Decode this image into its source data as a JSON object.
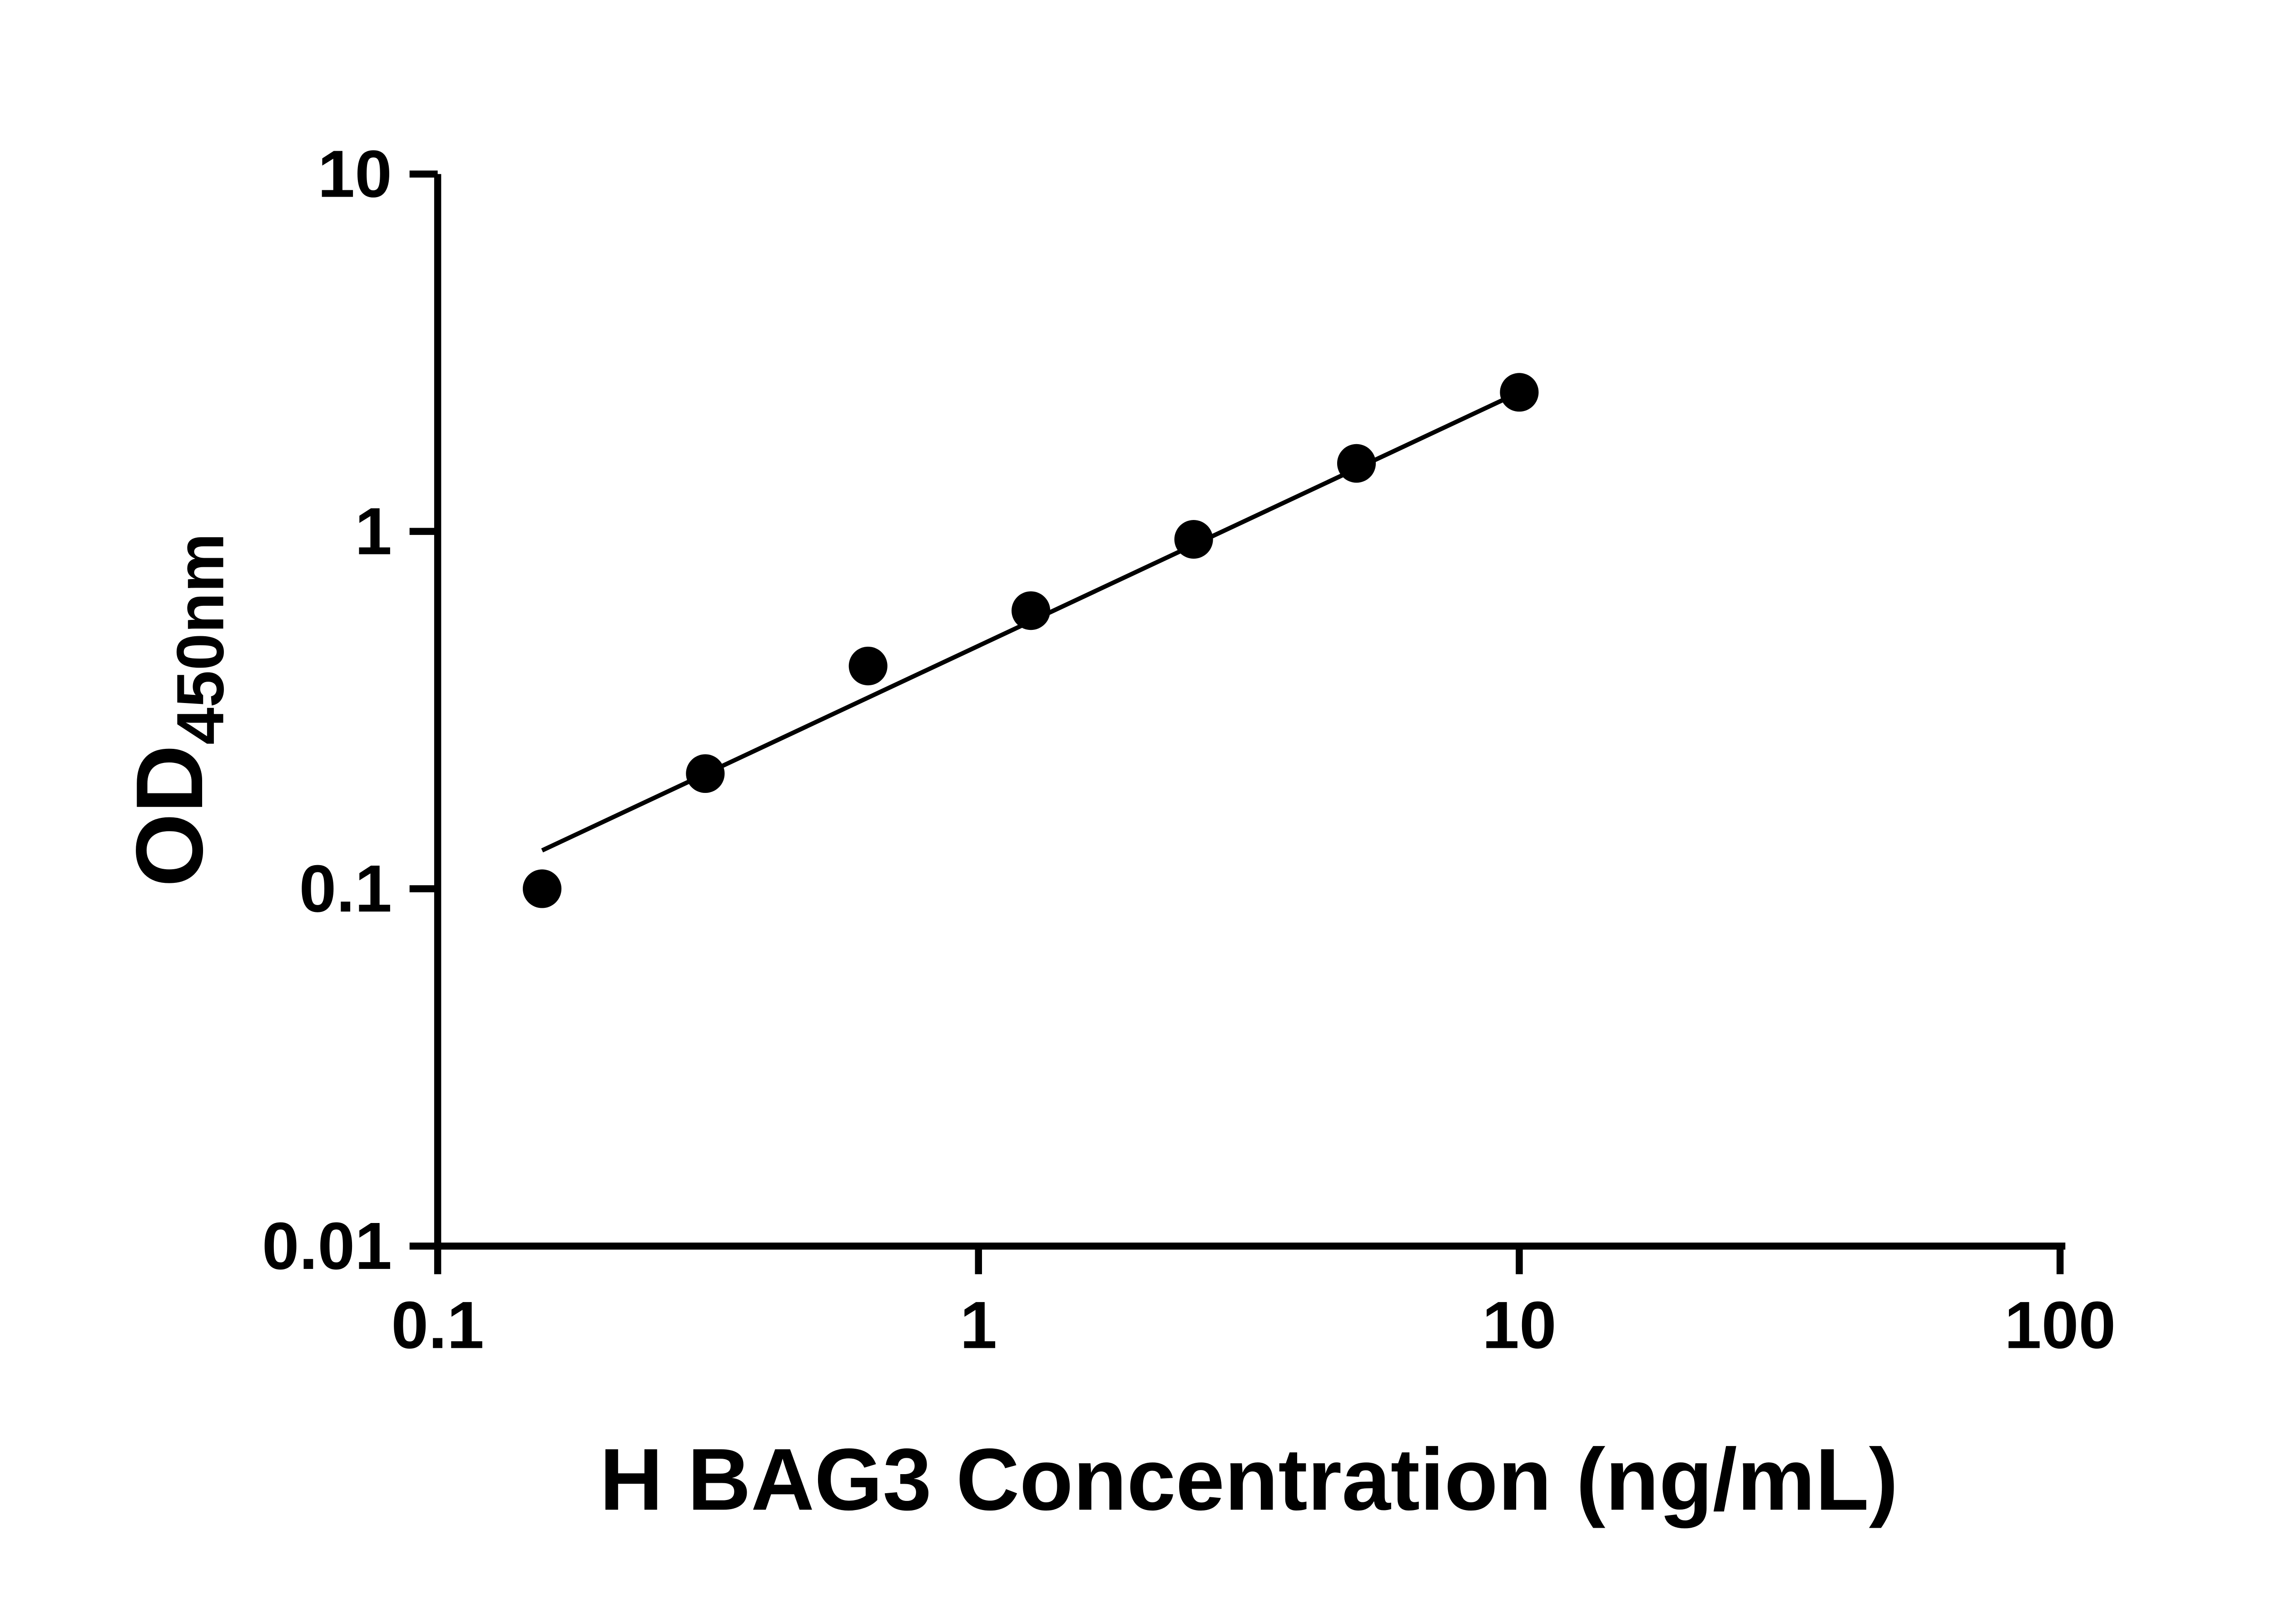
{
  "page": {
    "background": "#ffffff"
  },
  "chart_data": {
    "type": "scatter",
    "title": "",
    "xlabel": "H BAG3 Concentration (ng/mL)",
    "ylabel": "OD450nm",
    "ylabel_main": "OD",
    "ylabel_sub": "450nm",
    "x_scale": "log",
    "y_scale": "log",
    "xlim": [
      0.1,
      100
    ],
    "ylim": [
      0.01,
      10
    ],
    "x_ticks": [
      0.1,
      1,
      10,
      100
    ],
    "x_tick_labels": [
      "0.1",
      "1",
      "10",
      "100"
    ],
    "y_ticks": [
      0.01,
      0.1,
      1,
      10
    ],
    "y_tick_labels": [
      "0.01",
      "0.1",
      "1",
      "10"
    ],
    "grid": false,
    "legend": "none",
    "points": [
      {
        "x": 0.156,
        "y": 0.1
      },
      {
        "x": 0.3125,
        "y": 0.21
      },
      {
        "x": 0.625,
        "y": 0.42
      },
      {
        "x": 1.25,
        "y": 0.6
      },
      {
        "x": 2.5,
        "y": 0.95
      },
      {
        "x": 5,
        "y": 1.55
      },
      {
        "x": 10,
        "y": 2.45
      }
    ],
    "trendline": {
      "x1": 0.156,
      "y1": 0.128,
      "x2": 10,
      "y2": 2.45
    },
    "marker": {
      "shape": "circle",
      "color": "#000000",
      "radius_px": 11
    },
    "colors": {
      "axis": "#000000",
      "line": "#000000",
      "point": "#000000",
      "background": "#ffffff"
    }
  }
}
